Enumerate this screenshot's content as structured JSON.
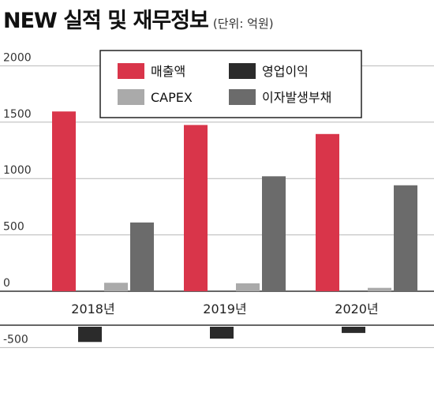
{
  "title": "NEW 실적 및 재무정보",
  "subtitle": "(단위: 억원)",
  "colors": {
    "revenue": "#d9354a",
    "operating_profit": "#2b2b2b",
    "capex": "#aaaaaa",
    "debt": "#6b6b6b",
    "grid": "#b8b8b8"
  },
  "chart_data": {
    "type": "bar",
    "title": "NEW 실적 및 재무정보",
    "subtitle": "(단위: 억원)",
    "categories": [
      "2018년",
      "2019년",
      "2020년"
    ],
    "series": [
      {
        "name": "매출액",
        "values": [
          1595,
          1475,
          1395
        ]
      },
      {
        "name": "영업이익",
        "values": [
          -135,
          -105,
          -55
        ]
      },
      {
        "name": "CAPEX",
        "values": [
          75,
          70,
          30
        ]
      },
      {
        "name": "이자발생부채",
        "values": [
          610,
          1020,
          940
        ]
      }
    ],
    "yticks": [
      "2000",
      "1500",
      "1000",
      "500",
      "0",
      "-500"
    ],
    "ylim": [
      -700,
      2100
    ],
    "grid": true,
    "legend_position": "top-right"
  }
}
